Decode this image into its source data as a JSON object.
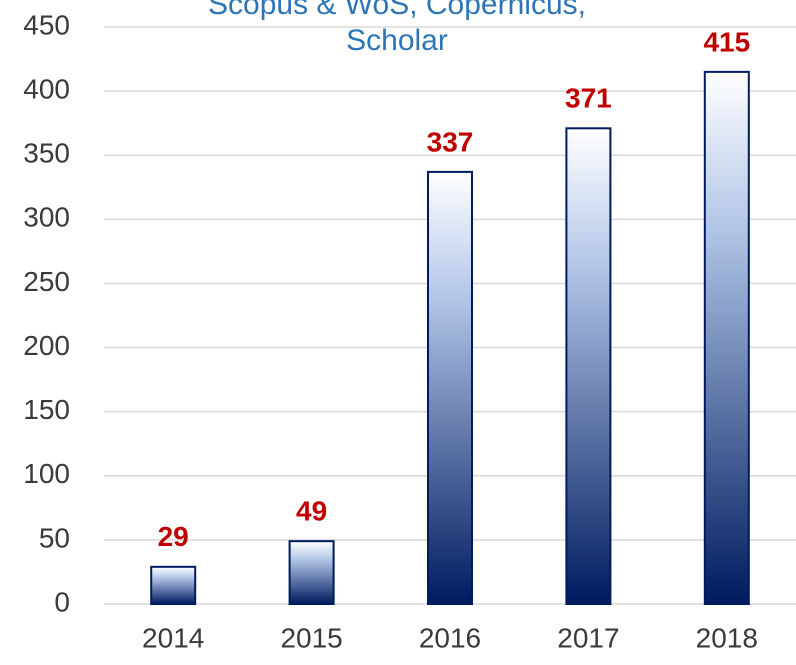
{
  "chart_data": {
    "type": "bar",
    "title": [
      "Scopus & WoS, Copernicus,",
      "Scholar"
    ],
    "categories": [
      "2014",
      "2015",
      "2016",
      "2017",
      "2018"
    ],
    "values": [
      29,
      49,
      337,
      371,
      415
    ],
    "color": "#001a5e",
    "ylim": [
      0,
      450
    ],
    "yticks": [
      0,
      50,
      100,
      150,
      200,
      250,
      300,
      350,
      400,
      450
    ],
    "grid": true
  }
}
